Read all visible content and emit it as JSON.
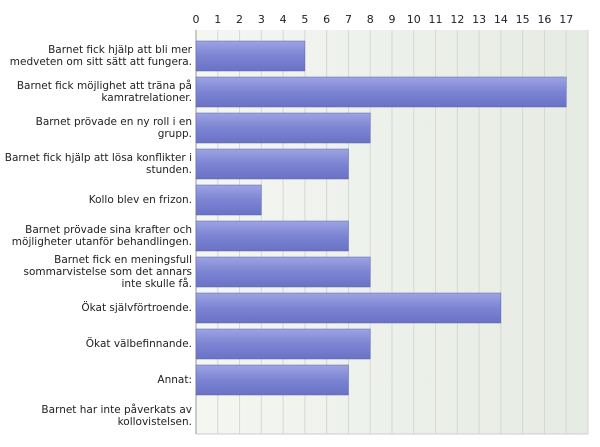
{
  "chart_data": {
    "type": "hbar",
    "categories": [
      "Barnet fick hjälp att bli mer medveten om sitt sätt att fungera.",
      "Barnet fick möjlighet att träna på kamratrelationer.",
      "Barnet prövade en ny roll i en grupp.",
      "Barnet fick hjälp att lösa konflikter i stunden.",
      "Kollo blev en frizon.",
      "Barnet prövade sina krafter och möjligheter utanför behandlingen.",
      "Barnet fick en meningsfull sommarvistelse som det annars inte skulle få.",
      "Ökat självförtroende.",
      "Ökat välbefinnande.",
      "Annat:",
      "Barnet har inte påverkats av kollovistelsen."
    ],
    "values": [
      5,
      17,
      8,
      7,
      3,
      7,
      8,
      14,
      8,
      7,
      0
    ],
    "color": "#7c84d4",
    "xlim": [
      0,
      18
    ],
    "xticks": [
      0,
      1,
      2,
      3,
      4,
      5,
      6,
      7,
      8,
      9,
      10,
      11,
      12,
      13,
      14,
      15,
      16,
      17
    ],
    "grid": true
  }
}
